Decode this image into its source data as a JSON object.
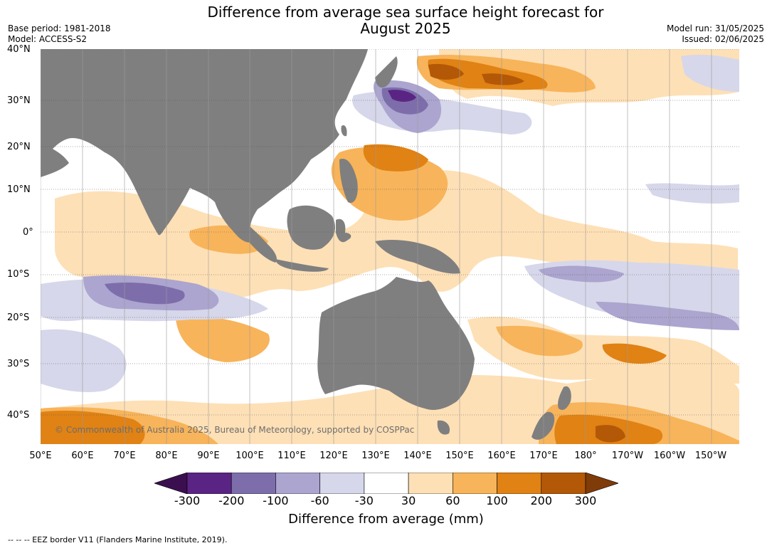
{
  "header": {
    "title_line1": "Difference from average sea surface height forecast for",
    "title_line2": "August 2025",
    "base_period": "Base period: 1981-2018",
    "model": "Model: ACCESS-S2",
    "model_run": "Model run: 31/05/2025",
    "issued": "Issued: 02/06/2025"
  },
  "map": {
    "lat_ticks": [
      "40°N",
      "30°N",
      "20°N",
      "10°N",
      "0°",
      "10°S",
      "20°S",
      "30°S",
      "40°S"
    ],
    "lon_ticks": [
      "50°E",
      "60°E",
      "70°E",
      "80°E",
      "90°E",
      "100°E",
      "110°E",
      "120°E",
      "130°E",
      "140°E",
      "150°E",
      "160°E",
      "170°E",
      "180°",
      "170°W",
      "160°W",
      "150°W"
    ],
    "copyright": "© Commonwealth of Australia 2025, Bureau of Meteorology, supported by COSPPac",
    "land_color": "#7f7f7f"
  },
  "colorbar": {
    "labels": [
      "-300",
      "-200",
      "-100",
      "-60",
      "-30",
      "30",
      "60",
      "100",
      "200",
      "300"
    ],
    "colors": [
      "#3b0f4f",
      "#5a2484",
      "#7d6eab",
      "#aba5cf",
      "#d6d7ea",
      "#ffffff",
      "#fee0b6",
      "#f8b45a",
      "#e08214",
      "#b35806",
      "#7f3b08"
    ],
    "title": "Difference from average (mm)"
  },
  "footnote": "--  --  -- EEZ border V11 (Flanders Marine Institute, 2019)."
}
